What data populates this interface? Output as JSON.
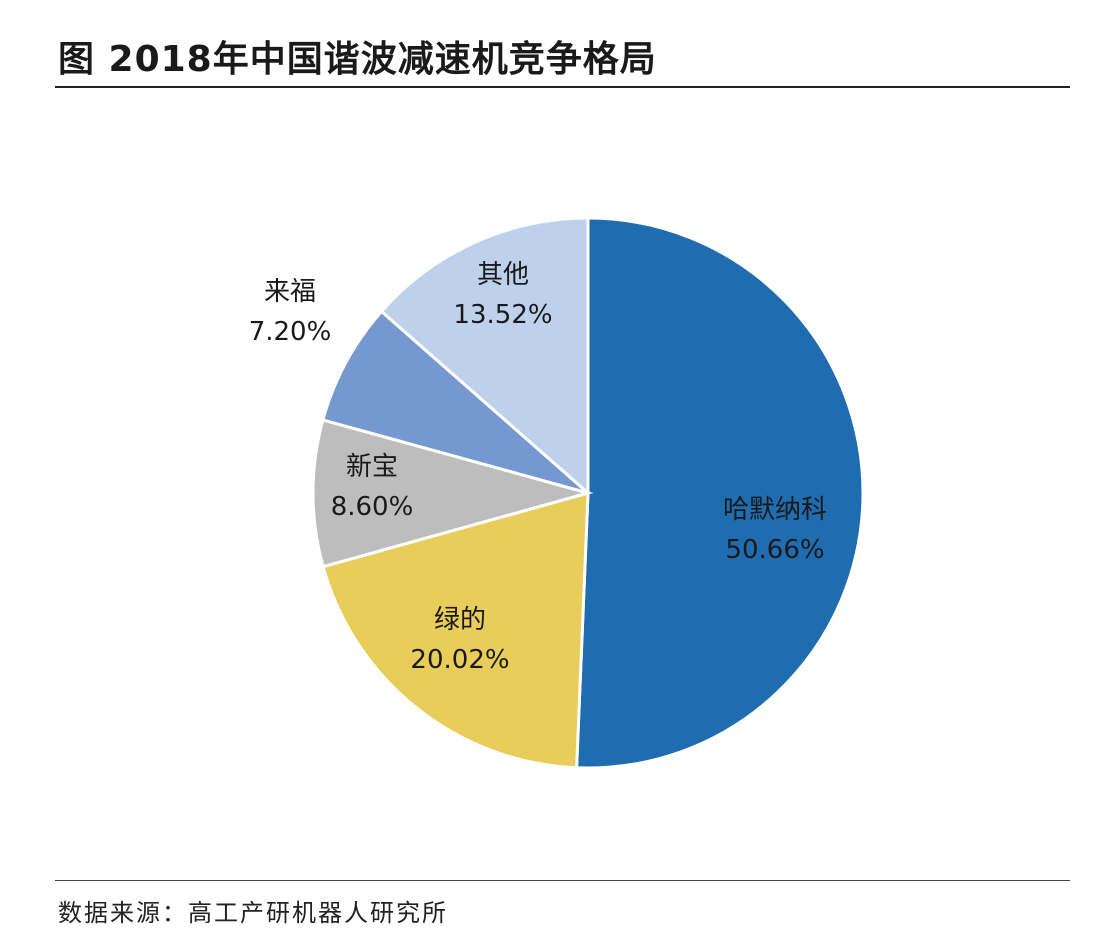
{
  "header": {
    "title": "图 2018年中国谐波减速机竞争格局"
  },
  "footer": {
    "source": "数据来源：高工产研机器人研究所"
  },
  "chart_data": {
    "type": "pie",
    "title": "图 2018年中国谐波减速机竞争格局",
    "start_angle": "12 o'clock",
    "direction": "clockwise",
    "slices": [
      {
        "label": "哈默纳科",
        "value": 50.66,
        "value_label": "50.66%",
        "color": "#1f6cb0"
      },
      {
        "label": "绿的",
        "value": 20.02,
        "value_label": "20.02%",
        "color": "#e9cd5b"
      },
      {
        "label": "新宝",
        "value": 8.6,
        "value_label": "8.60%",
        "color": "#bdbdbd"
      },
      {
        "label": "来福",
        "value": 7.2,
        "value_label": "7.20%",
        "color": "#7498cf"
      },
      {
        "label": "其他",
        "value": 13.52,
        "value_label": "13.52%",
        "color": "#bdd1ec"
      }
    ]
  }
}
